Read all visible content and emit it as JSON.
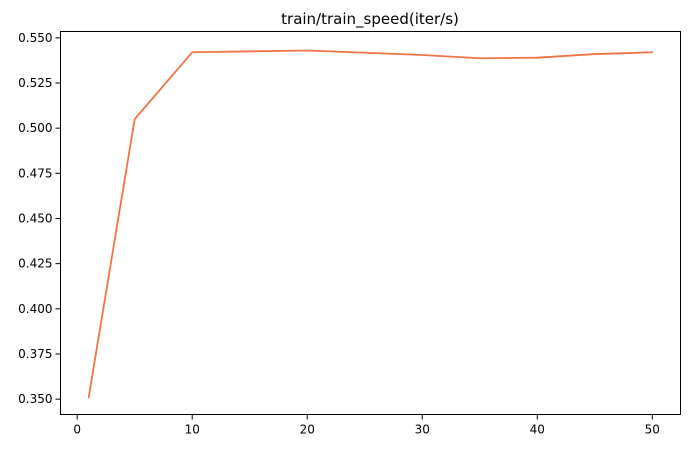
{
  "chart_data": {
    "type": "line",
    "title": "train/train_speed(iter/s)",
    "xlabel": "",
    "ylabel": "",
    "xlim": [
      -1.45,
      52.45
    ],
    "ylim": [
      0.3415,
      0.5535
    ],
    "xticks": [
      0,
      10,
      20,
      30,
      40,
      50
    ],
    "xtick_labels": [
      "0",
      "10",
      "20",
      "30",
      "40",
      "50"
    ],
    "yticks": [
      0.35,
      0.375,
      0.4,
      0.425,
      0.45,
      0.475,
      0.5,
      0.525,
      0.55
    ],
    "ytick_labels": [
      "0.350",
      "0.375",
      "0.400",
      "0.425",
      "0.450",
      "0.475",
      "0.500",
      "0.525",
      "0.550"
    ],
    "grid": false,
    "series": [
      {
        "color": "#f07444",
        "x": [
          1,
          5,
          10,
          20,
          30,
          35,
          40,
          45,
          50
        ],
        "y": [
          0.351,
          0.505,
          0.542,
          0.543,
          0.5405,
          0.5387,
          0.539,
          0.541,
          0.542
        ]
      }
    ]
  }
}
